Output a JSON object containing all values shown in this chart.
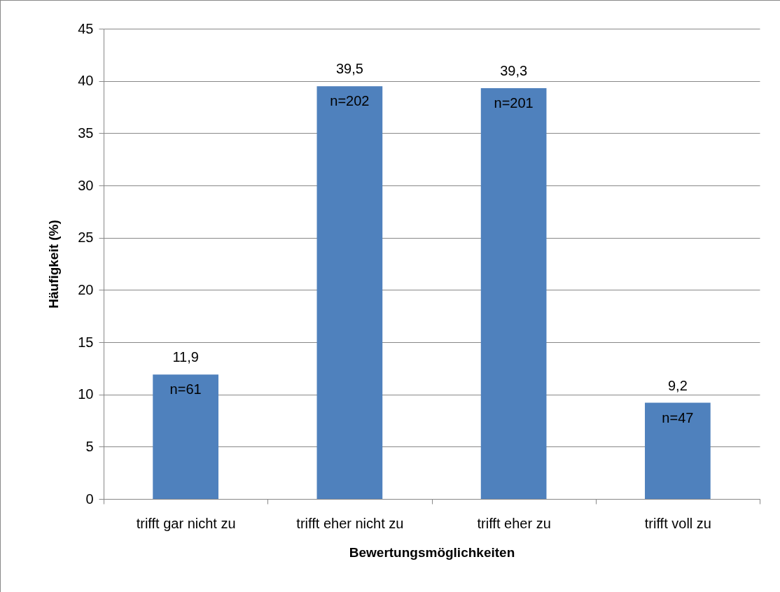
{
  "chart_data": {
    "type": "bar",
    "xlabel": "Bewertungsmöglichkeiten",
    "ylabel": "Häufigkeit (%)",
    "categories": [
      "trifft gar nicht zu",
      "trifft eher nicht zu",
      "trifft eher zu",
      "trifft voll zu"
    ],
    "values": [
      11.9,
      39.5,
      39.3,
      9.2
    ],
    "color": "#4f81bd",
    "value_labels": [
      "11,9",
      "39,5",
      "39,3",
      "9,2"
    ],
    "annotations": [
      {
        "text": "n=61",
        "x": "trifft gar nicht zu",
        "y": 11.9
      },
      {
        "text": "n=202",
        "x": "trifft eher nicht zu",
        "y": 39.5
      },
      {
        "text": "n=201",
        "x": "trifft eher zu",
        "y": 39.3
      },
      {
        "text": "n=47",
        "x": "trifft voll zu",
        "y": 9.2
      }
    ],
    "ylim": [
      0,
      45
    ],
    "yticks": [
      0,
      5,
      10,
      15,
      20,
      25,
      30,
      35,
      40,
      45
    ],
    "grid": "y"
  }
}
